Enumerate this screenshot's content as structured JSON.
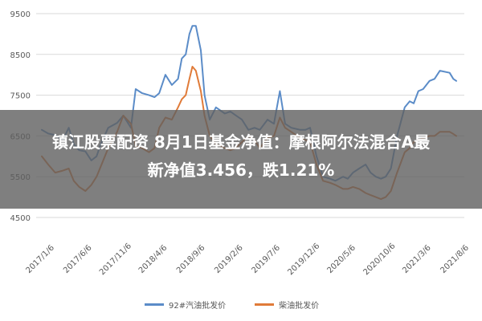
{
  "chart_data": {
    "type": "line",
    "ylim": [
      4500,
      9500
    ],
    "yticks": [
      4500,
      5500,
      6500,
      7500,
      8500,
      9500
    ],
    "x_tick_labels": [
      "2017/1/6",
      "2017/6/6",
      "2017/11/6",
      "2018/4/6",
      "2018/9/6",
      "2019/2/6",
      "2019/7/6",
      "2019/12/6",
      "2020/5/6",
      "2020/10/6",
      "2021/3/6",
      "2021/8/6"
    ],
    "grid": "horizontal",
    "legend_position": "bottom",
    "series": [
      {
        "name": "92#汽油批发价",
        "color": "#5b8cc8",
        "points": [
          [
            "2017-01-06",
            6650
          ],
          [
            "2017-02-01",
            6560
          ],
          [
            "2017-03-01",
            6520
          ],
          [
            "2017-04-01",
            6400
          ],
          [
            "2017-04-25",
            6700
          ],
          [
            "2017-05-15",
            6300
          ],
          [
            "2017-06-06",
            6150
          ],
          [
            "2017-07-01",
            6120
          ],
          [
            "2017-07-25",
            5900
          ],
          [
            "2017-08-15",
            6000
          ],
          [
            "2017-09-01",
            6300
          ],
          [
            "2017-10-01",
            6700
          ],
          [
            "2017-11-06",
            6820
          ],
          [
            "2017-12-01",
            7000
          ],
          [
            "2018-01-01",
            6700
          ],
          [
            "2018-01-20",
            7650
          ],
          [
            "2018-02-15",
            7550
          ],
          [
            "2018-03-15",
            7500
          ],
          [
            "2018-04-06",
            7450
          ],
          [
            "2018-04-25",
            7550
          ],
          [
            "2018-05-20",
            8000
          ],
          [
            "2018-06-15",
            7750
          ],
          [
            "2018-07-10",
            7900
          ],
          [
            "2018-07-25",
            8400
          ],
          [
            "2018-08-10",
            8500
          ],
          [
            "2018-08-25",
            9000
          ],
          [
            "2018-09-06",
            9200
          ],
          [
            "2018-09-20",
            9200
          ],
          [
            "2018-10-10",
            8600
          ],
          [
            "2018-10-25",
            7500
          ],
          [
            "2018-11-15",
            6900
          ],
          [
            "2018-12-10",
            7200
          ],
          [
            "2019-01-15",
            7050
          ],
          [
            "2019-02-06",
            7100
          ],
          [
            "2019-03-01",
            7000
          ],
          [
            "2019-03-25",
            6900
          ],
          [
            "2019-04-20",
            6650
          ],
          [
            "2019-05-15",
            6700
          ],
          [
            "2019-06-05",
            6650
          ],
          [
            "2019-07-06",
            6900
          ],
          [
            "2019-08-01",
            6800
          ],
          [
            "2019-08-25",
            7600
          ],
          [
            "2019-09-15",
            6800
          ],
          [
            "2019-10-10",
            6700
          ],
          [
            "2019-11-15",
            6650
          ],
          [
            "2019-12-06",
            6650
          ],
          [
            "2019-12-25",
            6700
          ],
          [
            "2020-01-20",
            6000
          ],
          [
            "2020-02-15",
            5500
          ],
          [
            "2020-03-15",
            5450
          ],
          [
            "2020-04-05",
            5400
          ],
          [
            "2020-05-06",
            5500
          ],
          [
            "2020-05-25",
            5450
          ],
          [
            "2020-06-15",
            5600
          ],
          [
            "2020-07-10",
            5700
          ],
          [
            "2020-08-05",
            5800
          ],
          [
            "2020-08-25",
            5600
          ],
          [
            "2020-09-15",
            5500
          ],
          [
            "2020-10-06",
            5450
          ],
          [
            "2020-10-25",
            5500
          ],
          [
            "2020-11-15",
            5700
          ],
          [
            "2020-12-10",
            6500
          ],
          [
            "2021-01-10",
            7200
          ],
          [
            "2021-01-30",
            7350
          ],
          [
            "2021-02-15",
            7300
          ],
          [
            "2021-03-06",
            7600
          ],
          [
            "2021-03-25",
            7650
          ],
          [
            "2021-04-20",
            7850
          ],
          [
            "2021-05-10",
            7900
          ],
          [
            "2021-06-01",
            8100
          ],
          [
            "2021-07-10",
            8050
          ],
          [
            "2021-07-25",
            7900
          ],
          [
            "2021-08-06",
            7850
          ]
        ]
      },
      {
        "name": "柴油批发价",
        "color": "#e07b39",
        "points": [
          [
            "2017-01-06",
            6000
          ],
          [
            "2017-02-01",
            5800
          ],
          [
            "2017-03-01",
            5600
          ],
          [
            "2017-04-01",
            5650
          ],
          [
            "2017-04-25",
            5700
          ],
          [
            "2017-05-15",
            5400
          ],
          [
            "2017-06-06",
            5250
          ],
          [
            "2017-07-01",
            5150
          ],
          [
            "2017-07-25",
            5300
          ],
          [
            "2017-08-15",
            5500
          ],
          [
            "2017-09-01",
            5750
          ],
          [
            "2017-10-01",
            6200
          ],
          [
            "2017-11-06",
            6600
          ],
          [
            "2017-12-01",
            7000
          ],
          [
            "2018-01-01",
            6800
          ],
          [
            "2018-01-20",
            6250
          ],
          [
            "2018-02-15",
            6200
          ],
          [
            "2018-03-15",
            6100
          ],
          [
            "2018-04-06",
            6200
          ],
          [
            "2018-04-25",
            6700
          ],
          [
            "2018-05-20",
            6950
          ],
          [
            "2018-06-15",
            6900
          ],
          [
            "2018-07-10",
            7200
          ],
          [
            "2018-07-25",
            7400
          ],
          [
            "2018-08-10",
            7500
          ],
          [
            "2018-08-25",
            7900
          ],
          [
            "2018-09-06",
            8200
          ],
          [
            "2018-09-20",
            8100
          ],
          [
            "2018-10-10",
            7600
          ],
          [
            "2018-10-25",
            7000
          ],
          [
            "2018-11-15",
            6500
          ],
          [
            "2018-12-10",
            6300
          ],
          [
            "2019-01-15",
            6200
          ],
          [
            "2019-02-06",
            6150
          ],
          [
            "2019-03-01",
            6200
          ],
          [
            "2019-03-25",
            6350
          ],
          [
            "2019-04-20",
            6500
          ],
          [
            "2019-05-15",
            6400
          ],
          [
            "2019-06-05",
            6200
          ],
          [
            "2019-07-06",
            6450
          ],
          [
            "2019-08-01",
            6500
          ],
          [
            "2019-08-25",
            6950
          ],
          [
            "2019-09-15",
            6700
          ],
          [
            "2019-10-10",
            6600
          ],
          [
            "2019-11-15",
            6450
          ],
          [
            "2019-12-06",
            6400
          ],
          [
            "2019-12-25",
            6350
          ],
          [
            "2020-01-20",
            5800
          ],
          [
            "2020-02-15",
            5400
          ],
          [
            "2020-03-15",
            5350
          ],
          [
            "2020-04-05",
            5300
          ],
          [
            "2020-05-06",
            5200
          ],
          [
            "2020-05-25",
            5200
          ],
          [
            "2020-06-15",
            5250
          ],
          [
            "2020-07-10",
            5200
          ],
          [
            "2020-08-05",
            5100
          ],
          [
            "2020-08-25",
            5050
          ],
          [
            "2020-09-15",
            5000
          ],
          [
            "2020-10-06",
            4950
          ],
          [
            "2020-10-25",
            5000
          ],
          [
            "2020-11-15",
            5150
          ],
          [
            "2020-12-10",
            5600
          ],
          [
            "2021-01-10",
            6100
          ],
          [
            "2021-01-30",
            6200
          ],
          [
            "2021-02-15",
            6350
          ],
          [
            "2021-03-06",
            6400
          ],
          [
            "2021-03-25",
            6450
          ],
          [
            "2021-04-20",
            6500
          ],
          [
            "2021-05-10",
            6500
          ],
          [
            "2021-06-01",
            6600
          ],
          [
            "2021-07-10",
            6600
          ],
          [
            "2021-07-25",
            6550
          ],
          [
            "2021-08-06",
            6500
          ]
        ]
      }
    ]
  },
  "overlay": {
    "line1": "镇江股票配资 8月1日基金净值：摩根阿尔法混合A最",
    "line2": "新净值3.456，跌1.21%"
  }
}
